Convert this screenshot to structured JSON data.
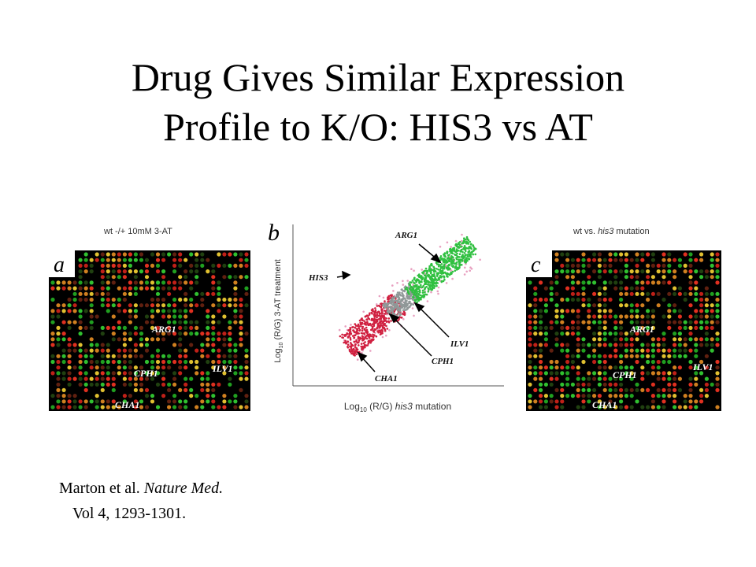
{
  "title": [
    "Drug Gives Similar Expression",
    "Profile to K/O: HIS3 vs AT"
  ],
  "figure": {
    "panel_a": {
      "letter": "a",
      "caption": "wt -/+ 10mM 3-AT",
      "labels": [
        "ARG1",
        "CPH1",
        "ILV1",
        "CHA1"
      ]
    },
    "panel_b": {
      "letter": "b",
      "x_label": [
        "Log",
        "10",
        " (R/G) ",
        "his3",
        " mutation"
      ],
      "y_label": [
        "Log",
        "10",
        " (R/G) 3-AT treatment"
      ],
      "labels": [
        "ARG1",
        "HIS3",
        "ILV1",
        "CPH1",
        "CHA1"
      ]
    },
    "panel_c": {
      "letter": "c",
      "caption": [
        "wt vs. ",
        "his3",
        " mutation"
      ],
      "labels": [
        "ARG1",
        "CPH1",
        "ILV1",
        "CHA1"
      ]
    }
  },
  "citation": {
    "authors": "Marton et al. ",
    "journal": "Nature Med.",
    "volume": "Vol  4, 1293-1301."
  }
}
